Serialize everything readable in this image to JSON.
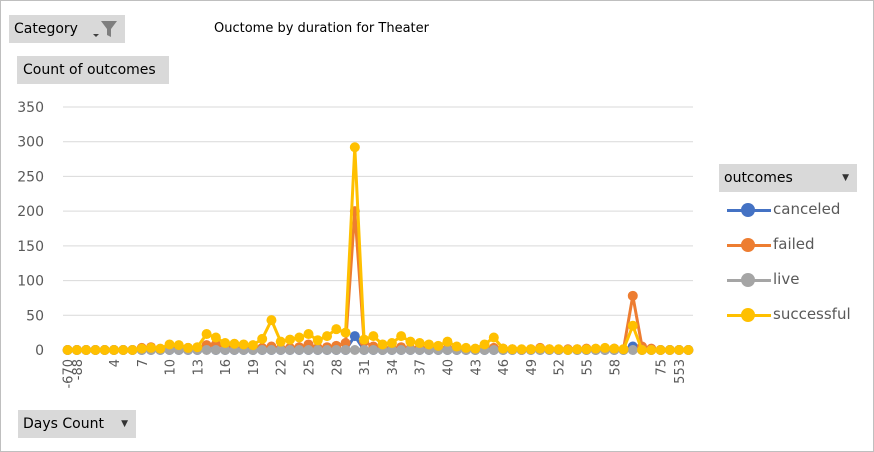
{
  "filters": {
    "category_label": "Category",
    "count_label": "Count of outcomes",
    "days_label": "Days Count",
    "outcomes_label": "outcomes"
  },
  "chart_data": {
    "type": "line",
    "title": "Ouctome by duration for Theater",
    "ylim": [
      0,
      350
    ],
    "yticks": [
      0,
      50,
      100,
      150,
      200,
      250,
      300,
      350
    ],
    "grid": true,
    "legend": "right",
    "x": [
      -670,
      -88,
      1,
      2,
      3,
      4,
      5,
      6,
      7,
      8,
      9,
      10,
      11,
      12,
      13,
      14,
      15,
      16,
      17,
      18,
      19,
      20,
      21,
      22,
      23,
      24,
      25,
      26,
      27,
      28,
      29,
      30,
      31,
      32,
      33,
      34,
      35,
      36,
      37,
      38,
      39,
      40,
      41,
      42,
      43,
      44,
      45,
      46,
      47,
      48,
      49,
      50,
      51,
      52,
      53,
      54,
      55,
      56,
      57,
      58,
      59,
      60,
      65,
      70,
      75,
      100,
      553,
      595
    ],
    "xtick_labels": [
      "-670",
      "-88",
      "4",
      "7",
      "10",
      "13",
      "16",
      "19",
      "22",
      "25",
      "28",
      "31",
      "34",
      "37",
      "40",
      "43",
      "46",
      "49",
      "52",
      "55",
      "58",
      "75",
      "553"
    ],
    "series": [
      {
        "name": "canceled",
        "color": "#4472c4",
        "values": [
          0,
          0,
          0,
          0,
          0,
          0,
          0,
          0,
          0,
          0,
          0,
          0,
          0,
          0,
          0,
          2,
          0,
          0,
          0,
          0,
          0,
          0,
          0,
          0,
          0,
          0,
          0,
          0,
          0,
          0,
          0,
          20,
          0,
          0,
          0,
          0,
          0,
          0,
          0,
          0,
          0,
          0,
          0,
          0,
          0,
          0,
          0,
          0,
          0,
          0,
          0,
          0,
          0,
          0,
          0,
          0,
          0,
          0,
          0,
          0,
          0,
          5,
          0,
          0,
          0,
          0,
          0,
          0
        ]
      },
      {
        "name": "failed",
        "color": "#ed7d31",
        "values": [
          0,
          0,
          0,
          0,
          0,
          0,
          0,
          0,
          3,
          4,
          1,
          4,
          2,
          3,
          2,
          7,
          8,
          5,
          2,
          3,
          4,
          3,
          5,
          2,
          3,
          4,
          8,
          3,
          4,
          6,
          10,
          200,
          12,
          5,
          3,
          2,
          4,
          2,
          3,
          2,
          1,
          2,
          3,
          2,
          1,
          1,
          3,
          2,
          1,
          0,
          1,
          3,
          1,
          0,
          1,
          1,
          2,
          1,
          1,
          2,
          1,
          78,
          5,
          2,
          0,
          0,
          0,
          0
        ]
      },
      {
        "name": "live",
        "color": "#a5a5a5",
        "values": [
          0,
          0,
          0,
          0,
          0,
          0,
          0,
          0,
          0,
          0,
          0,
          0,
          0,
          0,
          0,
          0,
          0,
          0,
          0,
          0,
          0,
          0,
          0,
          0,
          0,
          0,
          0,
          0,
          0,
          0,
          0,
          0,
          0,
          0,
          0,
          0,
          0,
          0,
          0,
          0,
          0,
          0,
          0,
          0,
          0,
          0,
          0,
          0,
          0,
          0,
          0,
          0,
          0,
          0,
          0,
          0,
          0,
          0,
          0,
          0,
          0,
          0,
          0,
          0,
          0,
          0,
          0,
          0
        ]
      },
      {
        "name": "successful",
        "color": "#ffc000",
        "values": [
          0,
          0,
          0,
          0,
          0,
          0,
          0,
          0,
          2,
          3,
          2,
          8,
          7,
          3,
          4,
          23,
          18,
          10,
          9,
          8,
          7,
          16,
          43,
          12,
          15,
          18,
          23,
          14,
          20,
          30,
          25,
          292,
          15,
          20,
          8,
          10,
          20,
          12,
          10,
          8,
          6,
          12,
          5,
          3,
          2,
          8,
          18,
          2,
          1,
          1,
          1,
          2,
          1,
          1,
          0,
          1,
          1,
          2,
          3,
          2,
          1,
          35,
          0,
          0,
          0,
          0,
          0,
          0
        ]
      }
    ]
  }
}
